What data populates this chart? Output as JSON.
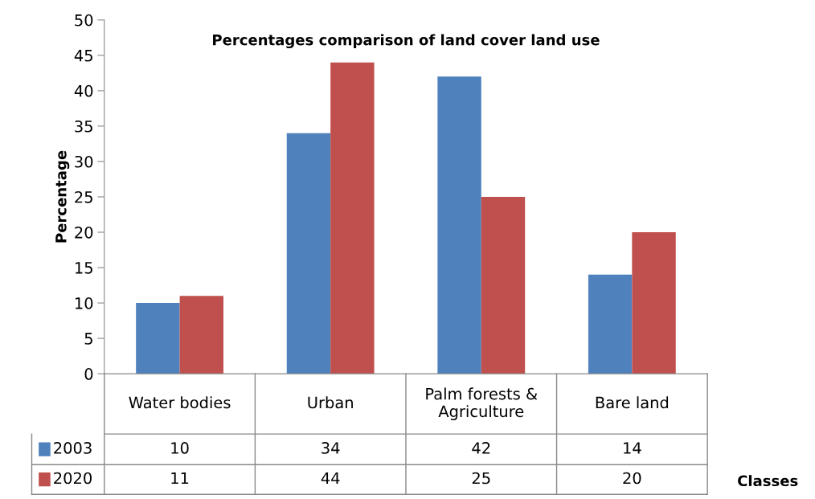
{
  "chart_data": {
    "type": "bar",
    "title": "Percentages comparison of land cover land use",
    "xlabel": "Classes",
    "ylabel": "Percentage",
    "categories": [
      "Water bodies",
      "Urban",
      "Palm forests &\nAgriculture",
      "Bare land"
    ],
    "series": [
      {
        "name": "2003",
        "color": "#4f81bd",
        "values": [
          10,
          34,
          42,
          14
        ]
      },
      {
        "name": "2020",
        "color": "#c0504d",
        "values": [
          11,
          44,
          25,
          20
        ]
      }
    ],
    "ylim": [
      0,
      50
    ],
    "yticks": [
      0,
      5,
      10,
      15,
      20,
      25,
      30,
      35,
      40,
      45,
      50
    ],
    "grid": false,
    "data_labels": true,
    "legend": "bottom"
  }
}
